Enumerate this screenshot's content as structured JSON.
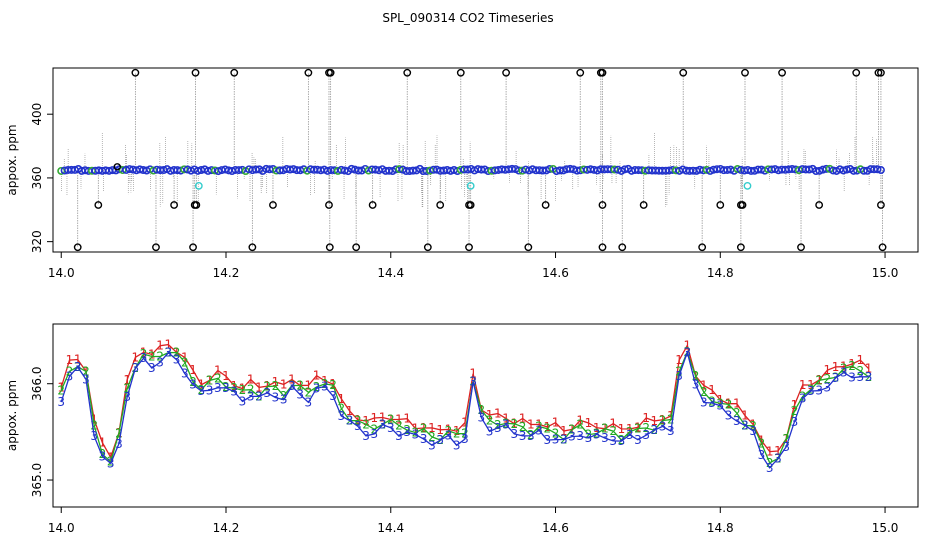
{
  "title": "SPL_090314  CO2 Timeseries",
  "chart_data": [
    {
      "type": "scatter",
      "panel": "top",
      "xlabel": "",
      "ylabel": "appox. ppm",
      "xlim": [
        13.99,
        15.04
      ],
      "ylim": [
        313.5,
        429
      ],
      "x_ticks": [
        "14.0",
        "14.2",
        "14.4",
        "14.6",
        "14.8",
        "15.0"
      ],
      "y_ticks": [
        "320",
        "360",
        "400"
      ],
      "grid": false,
      "colors": {
        "outlier": "#000000",
        "baseline": "#2233cc",
        "flag": "#33cccc",
        "spike": "#999999",
        "baseline_edge": "#33aa33"
      },
      "baseline_value": 365,
      "baseline_range": [
        14.0,
        14.995
      ],
      "outliers_high": [
        14.09,
        14.163,
        14.21,
        14.3,
        14.325,
        14.327,
        14.42,
        14.485,
        14.54,
        14.63,
        14.655,
        14.657,
        14.755,
        14.83,
        14.875,
        14.965,
        14.992,
        14.995
      ],
      "outliers_low": [
        14.02,
        14.115,
        14.16,
        14.232,
        14.326,
        14.358,
        14.445,
        14.495,
        14.567,
        14.657,
        14.681,
        14.778,
        14.825,
        14.898,
        14.997
      ],
      "outliers_mid_low": [
        14.045,
        14.137,
        14.162,
        14.164,
        14.257,
        14.325,
        14.378,
        14.46,
        14.495,
        14.497,
        14.588,
        14.657,
        14.707,
        14.8,
        14.825,
        14.827,
        14.92,
        14.995
      ],
      "flag_points": [
        {
          "x": 14.167,
          "y": 355
        },
        {
          "x": 14.497,
          "y": 355
        },
        {
          "x": 14.833,
          "y": 355
        }
      ],
      "extra_points": [
        {
          "x": 14.068,
          "y": 367
        }
      ]
    },
    {
      "type": "line",
      "panel": "bottom",
      "xlabel": "",
      "ylabel": "appox. ppm",
      "xlim": [
        13.99,
        15.04
      ],
      "ylim": [
        364.72,
        366.62
      ],
      "x_ticks": [
        "14.0",
        "14.2",
        "14.4",
        "14.6",
        "14.8",
        "15.0"
      ],
      "y_ticks": [
        "365.0",
        "366.0"
      ],
      "grid": false,
      "series": [
        {
          "name": "1",
          "color": "#dd2222"
        },
        {
          "name": "2",
          "color": "#22aa22"
        },
        {
          "name": "3",
          "color": "#2233cc"
        }
      ],
      "x": [
        14.0,
        14.01,
        14.02,
        14.03,
        14.04,
        14.05,
        14.06,
        14.07,
        14.08,
        14.09,
        14.1,
        14.11,
        14.12,
        14.13,
        14.14,
        14.15,
        14.16,
        14.17,
        14.18,
        14.19,
        14.2,
        14.21,
        14.22,
        14.23,
        14.24,
        14.25,
        14.26,
        14.27,
        14.28,
        14.29,
        14.3,
        14.31,
        14.32,
        14.33,
        14.34,
        14.35,
        14.36,
        14.37,
        14.38,
        14.39,
        14.4,
        14.41,
        14.42,
        14.43,
        14.44,
        14.45,
        14.46,
        14.47,
        14.48,
        14.49,
        14.5,
        14.51,
        14.52,
        14.53,
        14.54,
        14.55,
        14.56,
        14.57,
        14.58,
        14.59,
        14.6,
        14.61,
        14.62,
        14.63,
        14.64,
        14.65,
        14.66,
        14.67,
        14.68,
        14.69,
        14.7,
        14.71,
        14.72,
        14.73,
        14.74,
        14.75,
        14.76,
        14.77,
        14.78,
        14.79,
        14.8,
        14.81,
        14.82,
        14.83,
        14.84,
        14.85,
        14.86,
        14.87,
        14.88,
        14.89,
        14.9,
        14.91,
        14.92,
        14.93,
        14.94,
        14.95,
        14.96,
        14.97,
        14.98
      ],
      "y": [
        365.9,
        366.15,
        366.2,
        366.1,
        365.55,
        365.3,
        365.2,
        365.45,
        365.95,
        366.2,
        366.3,
        366.25,
        366.3,
        366.35,
        366.3,
        366.2,
        366.05,
        365.95,
        366.0,
        366.05,
        366.0,
        365.95,
        365.9,
        365.95,
        365.9,
        365.95,
        365.95,
        365.9,
        366.0,
        365.95,
        365.9,
        366.0,
        366.0,
        365.95,
        365.75,
        365.65,
        365.6,
        365.55,
        365.55,
        365.6,
        365.6,
        365.55,
        365.55,
        365.5,
        365.5,
        365.45,
        365.45,
        365.5,
        365.45,
        365.5,
        366.05,
        365.7,
        365.6,
        365.6,
        365.6,
        365.55,
        365.55,
        365.5,
        365.55,
        365.5,
        365.5,
        365.45,
        365.5,
        365.55,
        365.5,
        365.5,
        365.5,
        365.5,
        365.45,
        365.5,
        365.5,
        365.55,
        365.55,
        365.6,
        365.6,
        366.15,
        366.35,
        366.05,
        365.9,
        365.85,
        365.8,
        365.75,
        365.7,
        365.6,
        365.55,
        365.35,
        365.2,
        365.25,
        365.4,
        365.7,
        365.9,
        365.95,
        366.0,
        366.05,
        366.1,
        366.15,
        366.15,
        366.15,
        366.1
      ]
    }
  ]
}
